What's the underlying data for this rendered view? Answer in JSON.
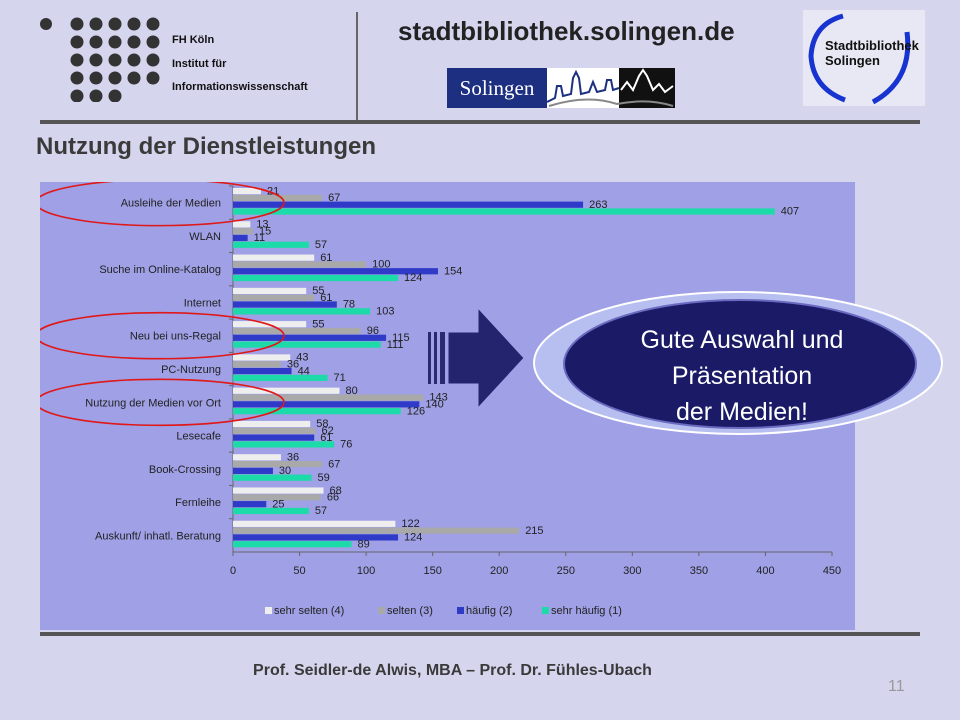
{
  "header": {
    "institution": [
      "FH Köln",
      "Institut für",
      "Informationswissenschaft"
    ],
    "website": "stadtbibliothek.solingen.de",
    "city_logo_text": "Solingen",
    "library_logo": [
      "Stadtbibliothek",
      "Solingen"
    ]
  },
  "slide": {
    "title": "Nutzung der Dienstleistungen",
    "footer": "Prof. Seidler-de Alwis, MBA – Prof. Dr. Fühles-Ubach",
    "page_number": "11"
  },
  "callout": {
    "lines": [
      "Gute Auswahl und",
      "Präsentation",
      "der Medien!"
    ]
  },
  "colors": {
    "sehr_selten": "#eeeeee",
    "selten": "#a9a9a9",
    "haeufig": "#2f3ac8",
    "sehr_haeufig": "#1cdba8",
    "highlight_circle": "#e01818",
    "callout_fill": "#1a1a66"
  },
  "chart_data": {
    "type": "bar",
    "orientation": "horizontal",
    "categories": [
      "Ausleihe der Medien",
      "WLAN",
      "Suche im Online-Katalog",
      "Internet",
      "Neu bei uns-Regal",
      "PC-Nutzung",
      "Nutzung der Medien vor Ort",
      "Lesecafe",
      "Book-Crossing",
      "Fernleihe",
      "Auskunft/ inhatl. Beratung"
    ],
    "series": [
      {
        "name": "sehr selten (4)",
        "values": [
          21,
          13,
          61,
          55,
          55,
          43,
          80,
          58,
          36,
          68,
          122
        ]
      },
      {
        "name": "selten (3)",
        "values": [
          67,
          15,
          100,
          61,
          96,
          36,
          143,
          62,
          67,
          66,
          215
        ]
      },
      {
        "name": "häufig (2)",
        "values": [
          263,
          11,
          154,
          78,
          115,
          44,
          140,
          61,
          30,
          25,
          124
        ]
      },
      {
        "name": "sehr häufig (1)",
        "values": [
          407,
          57,
          124,
          103,
          111,
          71,
          126,
          76,
          59,
          57,
          89
        ]
      }
    ],
    "xlim": [
      0,
      450
    ],
    "xticks": [
      0,
      50,
      100,
      150,
      200,
      250,
      300,
      350,
      400,
      450
    ],
    "legend_position": "bottom",
    "highlighted_categories": [
      "Ausleihe der Medien",
      "Neu bei uns-Regal",
      "Nutzung der Medien vor Ort"
    ]
  }
}
